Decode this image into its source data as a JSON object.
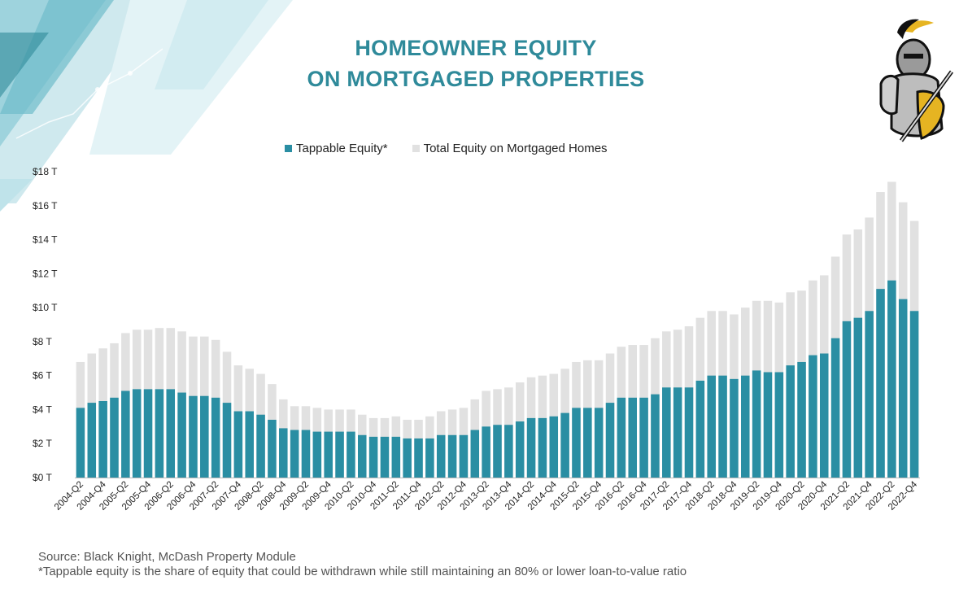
{
  "header": {
    "title_line1": "HOMEOWNER EQUITY",
    "title_line2": "ON MORTGAGED PROPERTIES"
  },
  "logo": {
    "icon": "knight-icon"
  },
  "colors": {
    "tappable": "#2a8ea3",
    "total": "#e1e1e1",
    "title": "#2f8a9a"
  },
  "chart_data": {
    "type": "bar",
    "stacked": "overlay",
    "legend_placement": "top-center",
    "grid": false,
    "ylim": [
      0,
      18
    ],
    "y_ticks": [
      "$0 T",
      "$2 T",
      "$4 T",
      "$6 T",
      "$8 T",
      "$10 T",
      "$12 T",
      "$14 T",
      "$16 T",
      "$18 T"
    ],
    "x_tick_labels": [
      "2004-Q2",
      "2004-Q4",
      "2005-Q2",
      "2005-Q4",
      "2006-Q2",
      "2006-Q4",
      "2007-Q2",
      "2007-Q4",
      "2008-Q2",
      "2008-Q4",
      "2009-Q2",
      "2009-Q4",
      "2010-Q2",
      "2010-Q4",
      "2011-Q2",
      "2011-Q4",
      "2012-Q2",
      "2012-Q4",
      "2013-Q2",
      "2013-Q4",
      "2014-Q2",
      "2014-Q4",
      "2015-Q2",
      "2015-Q4",
      "2016-Q2",
      "2016-Q4",
      "2017-Q2",
      "2017-Q4",
      "2018-Q2",
      "2018-Q4",
      "2019-Q2",
      "2019-Q4",
      "2020-Q2",
      "2020-Q4",
      "2021-Q2",
      "2021-Q4",
      "2022-Q2",
      "2022-Q4"
    ],
    "categories": [
      "2004-Q2",
      "2004-Q3",
      "2004-Q4",
      "2005-Q1",
      "2005-Q2",
      "2005-Q3",
      "2005-Q4",
      "2006-Q1",
      "2006-Q2",
      "2006-Q3",
      "2006-Q4",
      "2007-Q1",
      "2007-Q2",
      "2007-Q3",
      "2007-Q4",
      "2008-Q1",
      "2008-Q2",
      "2008-Q3",
      "2008-Q4",
      "2009-Q1",
      "2009-Q2",
      "2009-Q3",
      "2009-Q4",
      "2010-Q1",
      "2010-Q2",
      "2010-Q3",
      "2010-Q4",
      "2011-Q1",
      "2011-Q2",
      "2011-Q3",
      "2011-Q4",
      "2012-Q1",
      "2012-Q2",
      "2012-Q3",
      "2012-Q4",
      "2013-Q1",
      "2013-Q2",
      "2013-Q3",
      "2013-Q4",
      "2014-Q1",
      "2014-Q2",
      "2014-Q3",
      "2014-Q4",
      "2015-Q1",
      "2015-Q2",
      "2015-Q3",
      "2015-Q4",
      "2016-Q1",
      "2016-Q2",
      "2016-Q3",
      "2016-Q4",
      "2017-Q1",
      "2017-Q2",
      "2017-Q3",
      "2017-Q4",
      "2018-Q1",
      "2018-Q2",
      "2018-Q3",
      "2018-Q4",
      "2019-Q1",
      "2019-Q2",
      "2019-Q3",
      "2019-Q4",
      "2020-Q1",
      "2020-Q2",
      "2020-Q3",
      "2020-Q4",
      "2021-Q1",
      "2021-Q2",
      "2021-Q3",
      "2021-Q4",
      "2022-Q1",
      "2022-Q2",
      "2022-Q3",
      "2022-Q4"
    ],
    "series": [
      {
        "name": "Tappable Equity*",
        "values": [
          4.1,
          4.4,
          4.5,
          4.7,
          5.1,
          5.2,
          5.2,
          5.2,
          5.2,
          5.0,
          4.8,
          4.8,
          4.7,
          4.4,
          3.9,
          3.9,
          3.7,
          3.4,
          2.9,
          2.8,
          2.8,
          2.7,
          2.7,
          2.7,
          2.7,
          2.5,
          2.4,
          2.4,
          2.4,
          2.3,
          2.3,
          2.3,
          2.5,
          2.5,
          2.5,
          2.8,
          3.0,
          3.1,
          3.1,
          3.3,
          3.5,
          3.5,
          3.6,
          3.8,
          4.1,
          4.1,
          4.1,
          4.4,
          4.7,
          4.7,
          4.7,
          4.9,
          5.3,
          5.3,
          5.3,
          5.7,
          6.0,
          6.0,
          5.8,
          6.0,
          6.3,
          6.2,
          6.2,
          6.6,
          6.8,
          7.2,
          7.3,
          8.2,
          9.2,
          9.4,
          9.8,
          11.1,
          11.6,
          10.5,
          9.8
        ]
      },
      {
        "name": "Total Equity on Mortgaged Homes",
        "values": [
          6.8,
          7.3,
          7.6,
          7.9,
          8.5,
          8.7,
          8.7,
          8.8,
          8.8,
          8.6,
          8.3,
          8.3,
          8.1,
          7.4,
          6.6,
          6.4,
          6.1,
          5.5,
          4.6,
          4.2,
          4.2,
          4.1,
          4.0,
          4.0,
          4.0,
          3.7,
          3.5,
          3.5,
          3.6,
          3.4,
          3.4,
          3.6,
          3.9,
          4.0,
          4.1,
          4.6,
          5.1,
          5.2,
          5.3,
          5.6,
          5.9,
          6.0,
          6.1,
          6.4,
          6.8,
          6.9,
          6.9,
          7.3,
          7.7,
          7.8,
          7.8,
          8.2,
          8.6,
          8.7,
          8.9,
          9.4,
          9.8,
          9.8,
          9.6,
          10.0,
          10.4,
          10.4,
          10.3,
          10.9,
          11.0,
          11.6,
          11.9,
          13.0,
          14.3,
          14.6,
          15.3,
          16.8,
          17.4,
          16.2,
          15.1
        ]
      }
    ]
  },
  "footer": {
    "source": "Source: Black Knight, McDash Property Module",
    "note": "*Tappable equity is the share of equity that could be withdrawn while still maintaining an 80% or lower loan-to-value ratio"
  }
}
